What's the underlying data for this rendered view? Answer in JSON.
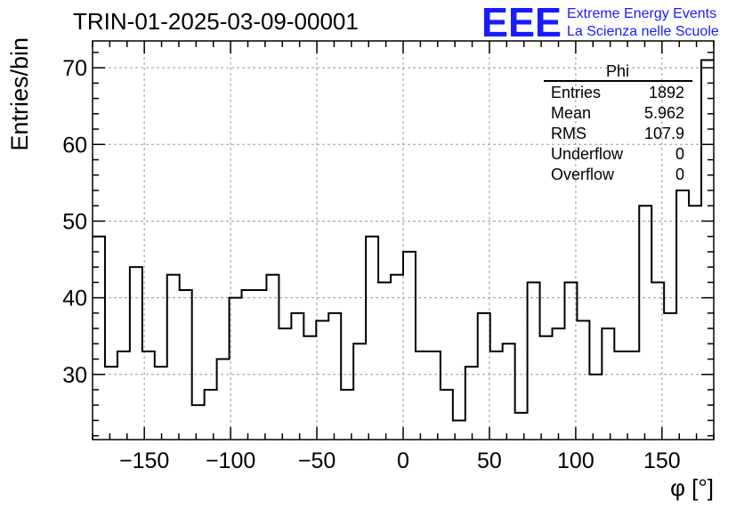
{
  "chart_data": {
    "type": "histogram",
    "title": "TRIN-01-2025-03-09-00001",
    "xlabel": "φ [°]",
    "ylabel": "Entries/bin",
    "xlim": [
      -180,
      180
    ],
    "ylim": [
      21.5,
      73.5
    ],
    "grid": true,
    "bin_width": 7.2,
    "x_ticks": [
      -150,
      -100,
      -50,
      0,
      50,
      100,
      150
    ],
    "x_tick_labels": [
      "−150",
      "−100",
      "−50",
      "0",
      "50",
      "100",
      "150"
    ],
    "y_ticks": [
      30,
      40,
      50,
      60,
      70
    ],
    "y_tick_labels": [
      "30",
      "40",
      "50",
      "60",
      "70"
    ],
    "values": [
      48,
      31,
      33,
      44,
      33,
      31,
      43,
      41,
      26,
      28,
      32,
      40,
      41,
      41,
      43,
      36,
      38,
      35,
      37,
      38,
      28,
      34,
      48,
      42,
      43,
      46,
      33,
      33,
      28,
      24,
      31,
      38,
      33,
      34,
      25,
      42,
      35,
      36,
      42,
      37,
      30,
      36,
      33,
      33,
      52,
      42,
      38,
      54,
      52,
      71
    ],
    "stats": {
      "name": "Phi",
      "rows": [
        {
          "label": "Entries",
          "value": "1892"
        },
        {
          "label": "Mean",
          "value": "5.962"
        },
        {
          "label": "RMS",
          "value": "107.9"
        },
        {
          "label": "Underflow",
          "value": "0"
        },
        {
          "label": "Overflow",
          "value": "0"
        }
      ]
    }
  },
  "logo": {
    "mark": "EEE",
    "line1": "Extreme Energy Events",
    "line2": "La Scienza nelle Scuole",
    "color": "#1a1aff"
  },
  "colors": {
    "line": "#000000",
    "grid": "#9a9a9a",
    "background": "#ffffff"
  }
}
